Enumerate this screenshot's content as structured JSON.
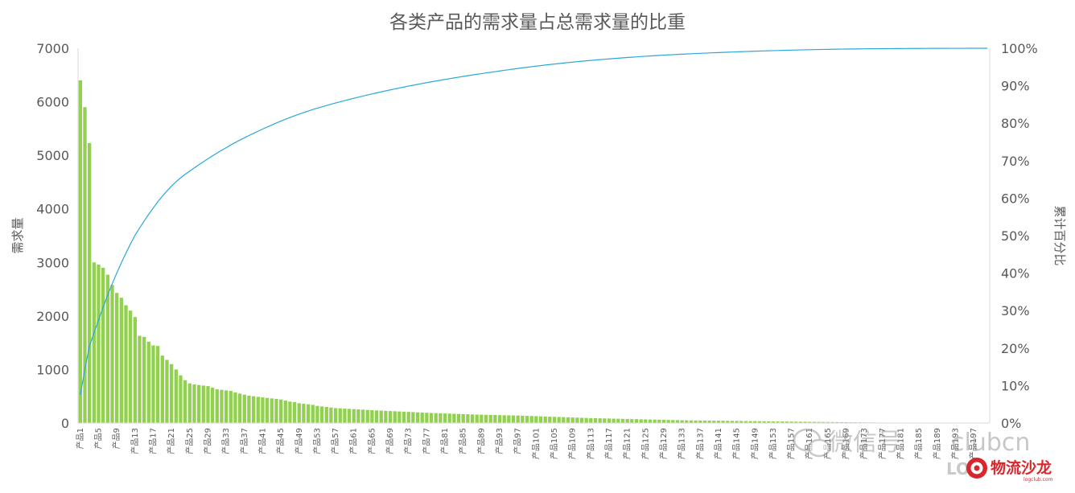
{
  "chart_data": {
    "type": "pareto",
    "title": "各类产品的需求量占总需求量的比重",
    "ylabel": "需求量",
    "y2label": "累计百分比",
    "ylim": [
      0,
      7000
    ],
    "y_ticks": [
      "0",
      "1000",
      "2000",
      "3000",
      "4000",
      "5000",
      "6000",
      "7000"
    ],
    "y2lim": [
      0,
      100
    ],
    "y2_ticks": [
      "0%",
      "10%",
      "20%",
      "30%",
      "40%",
      "50%",
      "60%",
      "70%",
      "80%",
      "90%",
      "100%"
    ],
    "category_prefix": "产品",
    "category_count": 200,
    "label_every": 4,
    "grid": false,
    "series": [
      {
        "name": "需求量",
        "type": "bar",
        "color": "#92d050",
        "values": [
          6400,
          5900,
          5230,
          3000,
          2960,
          2900,
          2770,
          2580,
          2430,
          2340,
          2200,
          2100,
          1980,
          1630,
          1610,
          1520,
          1450,
          1440,
          1260,
          1180,
          1100,
          1000,
          890,
          800,
          740,
          720,
          710,
          700,
          690,
          660,
          630,
          620,
          610,
          600,
          570,
          550,
          530,
          510,
          500,
          490,
          480,
          470,
          460,
          450,
          440,
          420,
          400,
          390,
          370,
          360,
          350,
          340,
          320,
          310,
          300,
          290,
          280,
          275,
          270,
          265,
          260,
          255,
          250,
          245,
          240,
          236,
          232,
          228,
          224,
          220,
          216,
          212,
          208,
          204,
          200,
          196,
          192,
          188,
          185,
          182,
          179,
          176,
          173,
          170,
          167,
          164,
          161,
          158,
          156,
          154,
          152,
          150,
          148,
          146,
          144,
          142,
          140,
          137,
          134,
          131,
          128,
          125,
          122,
          119,
          116,
          113,
          110,
          107,
          104,
          101,
          98,
          95,
          92,
          90,
          88,
          86,
          84,
          82,
          80,
          78,
          76,
          74,
          72,
          70,
          68,
          66,
          64,
          62,
          60,
          58,
          56,
          54,
          52,
          50,
          49,
          48,
          47,
          46,
          45,
          44,
          43,
          42,
          41,
          40,
          39,
          38,
          37,
          36,
          35,
          34,
          33,
          32,
          31,
          30,
          29,
          28,
          27,
          26,
          25,
          24,
          23,
          22,
          21,
          20,
          19,
          18,
          17,
          16,
          15,
          14,
          13,
          12,
          11,
          10,
          10,
          9,
          9,
          8,
          8,
          7,
          7,
          6,
          6,
          5,
          5,
          5,
          4,
          4,
          4,
          3,
          3,
          3,
          3,
          2,
          2,
          2,
          2,
          2,
          1,
          1
        ]
      },
      {
        "name": "累计百分比",
        "type": "line",
        "color": "#2aa9d8",
        "axis": "right"
      }
    ]
  },
  "watermark": {
    "text": "微信号",
    "fragment": "clubcn",
    "logo_text": "物流沙龙",
    "logo_sub": "logclub.com",
    "logo_prefix": "LOG"
  }
}
